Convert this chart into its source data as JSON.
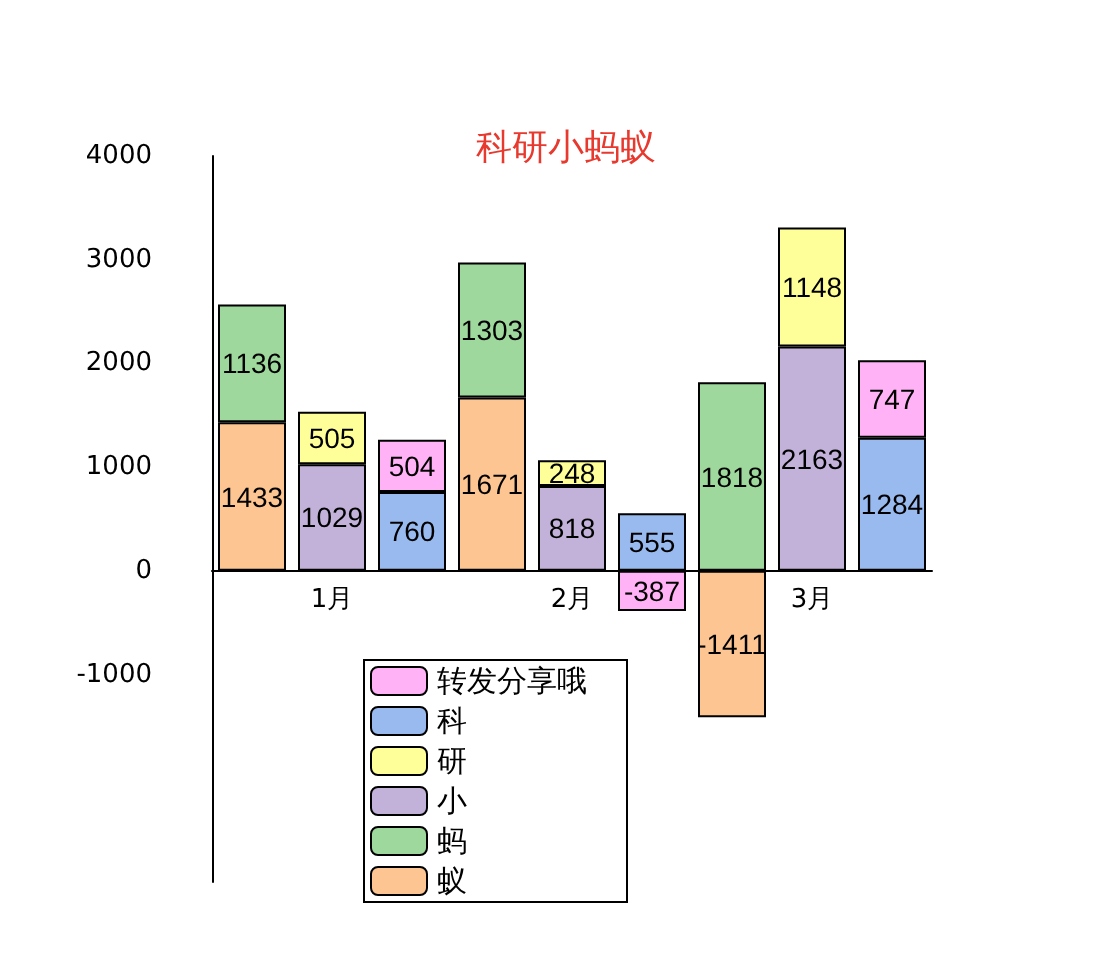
{
  "chart_data": {
    "type": "bar",
    "title": "科研小蚂蚁",
    "stacked": true,
    "data_labels": true,
    "legend": "bottom",
    "grid": false,
    "categories": [
      null,
      "1月",
      null,
      null,
      "2月",
      null,
      null,
      "3月",
      null
    ],
    "ylim": [
      -3000,
      4000
    ],
    "yticks": [
      -1000,
      0,
      1000,
      2000,
      3000,
      4000
    ],
    "series": [
      {
        "name": "蚁",
        "color": "#fcc591",
        "values": [
          1433,
          null,
          null,
          1671,
          null,
          null,
          -1411,
          null,
          null
        ]
      },
      {
        "name": "蚂",
        "color": "#9fd89d",
        "values": [
          1136,
          null,
          null,
          1303,
          null,
          null,
          1818,
          null,
          null
        ]
      },
      {
        "name": "小",
        "color": "#c2b2d9",
        "values": [
          null,
          1029,
          null,
          null,
          818,
          null,
          null,
          2163,
          null
        ]
      },
      {
        "name": "研",
        "color": "#ffff99",
        "values": [
          null,
          505,
          null,
          null,
          248,
          null,
          null,
          1148,
          null
        ]
      },
      {
        "name": "科",
        "color": "#98baef",
        "values": [
          null,
          null,
          760,
          null,
          null,
          555,
          null,
          null,
          1284
        ]
      },
      {
        "name": "转发分享哦",
        "color": "#ffb3f6",
        "values": [
          null,
          null,
          504,
          null,
          null,
          -387,
          null,
          null,
          747
        ]
      }
    ]
  }
}
